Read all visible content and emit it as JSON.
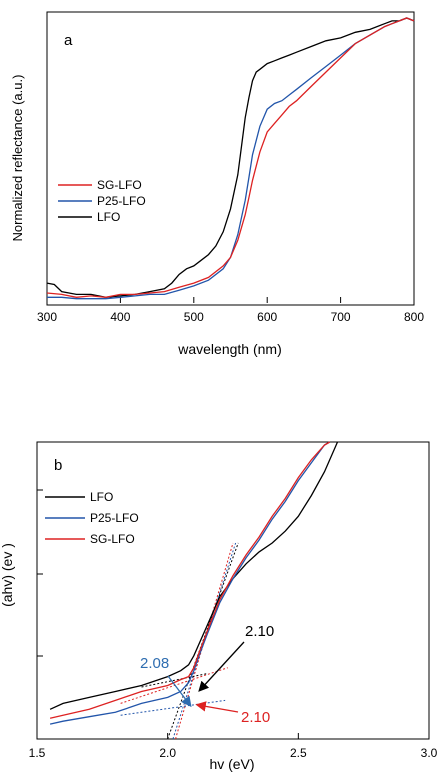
{
  "chart_data": [
    {
      "type": "line",
      "panel_label": "a",
      "xlabel": "wavelength (nm)",
      "ylabel": "Normalized reflectance (a.u.)",
      "xlim": [
        300,
        800
      ],
      "ylim": [
        0,
        1
      ],
      "x_ticks": [
        300,
        400,
        500,
        600,
        700,
        800
      ],
      "y_ticks_labeled": false,
      "grid": false,
      "legend": "center-left",
      "legend_order": [
        "SG-LFO",
        "P25-LFO",
        "LFO"
      ],
      "series": [
        {
          "name": "LFO",
          "color": "#000000",
          "x": [
            300,
            310,
            320,
            340,
            360,
            380,
            400,
            420,
            440,
            460,
            470,
            480,
            490,
            500,
            510,
            520,
            530,
            540,
            550,
            560,
            565,
            570,
            575,
            580,
            585,
            590,
            600,
            610,
            620,
            630,
            640,
            660,
            680,
            700,
            720,
            740,
            760,
            770,
            780,
            790,
            800
          ],
          "y": [
            0.07,
            0.065,
            0.04,
            0.03,
            0.03,
            0.02,
            0.025,
            0.03,
            0.04,
            0.05,
            0.07,
            0.1,
            0.12,
            0.13,
            0.15,
            0.17,
            0.2,
            0.25,
            0.33,
            0.45,
            0.55,
            0.65,
            0.72,
            0.78,
            0.81,
            0.82,
            0.84,
            0.85,
            0.86,
            0.87,
            0.88,
            0.9,
            0.92,
            0.93,
            0.95,
            0.96,
            0.98,
            0.99,
            0.99,
            1.0,
            0.99
          ]
        },
        {
          "name": "P25-LFO",
          "color": "#2255aa",
          "x": [
            300,
            320,
            340,
            360,
            380,
            400,
            420,
            440,
            460,
            480,
            500,
            520,
            540,
            550,
            560,
            570,
            575,
            580,
            590,
            600,
            610,
            620,
            630,
            640,
            660,
            680,
            700,
            720,
            740,
            760,
            770,
            780,
            790,
            800
          ],
          "y": [
            0.02,
            0.02,
            0.015,
            0.015,
            0.015,
            0.02,
            0.025,
            0.03,
            0.03,
            0.045,
            0.06,
            0.08,
            0.12,
            0.16,
            0.24,
            0.36,
            0.44,
            0.52,
            0.62,
            0.68,
            0.7,
            0.71,
            0.73,
            0.75,
            0.79,
            0.83,
            0.87,
            0.91,
            0.94,
            0.97,
            0.98,
            0.99,
            1.0,
            0.99
          ]
        },
        {
          "name": "SG-LFO",
          "color": "#dd2222",
          "x": [
            300,
            320,
            340,
            360,
            380,
            400,
            420,
            440,
            460,
            480,
            500,
            520,
            540,
            550,
            560,
            570,
            575,
            580,
            590,
            600,
            610,
            620,
            630,
            640,
            660,
            680,
            700,
            720,
            740,
            760,
            770,
            780,
            790,
            800
          ],
          "y": [
            0.035,
            0.03,
            0.02,
            0.025,
            0.02,
            0.03,
            0.03,
            0.035,
            0.04,
            0.055,
            0.07,
            0.09,
            0.13,
            0.16,
            0.22,
            0.31,
            0.37,
            0.43,
            0.53,
            0.6,
            0.63,
            0.66,
            0.69,
            0.71,
            0.76,
            0.81,
            0.86,
            0.91,
            0.94,
            0.97,
            0.98,
            0.99,
            1.0,
            0.99
          ]
        }
      ]
    },
    {
      "type": "line",
      "panel_label": "b",
      "xlabel": "hv (eV)",
      "ylabel": "(αhν)² (eV)²",
      "ylabel_visible": "(ahv) (ev )",
      "xlim": [
        1.5,
        3.0
      ],
      "ylim": [
        0,
        1
      ],
      "x_ticks": [
        1.5,
        2.0,
        2.5,
        3.0
      ],
      "y_ticks_labeled": false,
      "grid": false,
      "legend": "top-left",
      "legend_order": [
        "LFO",
        "P25-LFO",
        "SG-LFO"
      ],
      "series": [
        {
          "name": "LFO",
          "color": "#000000",
          "x": [
            1.55,
            1.6,
            1.7,
            1.8,
            1.9,
            2.0,
            2.05,
            2.08,
            2.1,
            2.12,
            2.15,
            2.2,
            2.25,
            2.3,
            2.35,
            2.4,
            2.45,
            2.5,
            2.55,
            2.6,
            2.65
          ],
          "y": [
            0.1,
            0.12,
            0.14,
            0.16,
            0.18,
            0.21,
            0.23,
            0.25,
            0.28,
            0.32,
            0.38,
            0.48,
            0.54,
            0.59,
            0.63,
            0.66,
            0.7,
            0.75,
            0.82,
            0.9,
            1.0
          ]
        },
        {
          "name": "P25-LFO",
          "color": "#2255aa",
          "x": [
            1.55,
            1.6,
            1.7,
            1.8,
            1.9,
            2.0,
            2.05,
            2.08,
            2.1,
            2.12,
            2.15,
            2.2,
            2.25,
            2.3,
            2.35,
            2.4,
            2.45,
            2.5,
            2.55,
            2.6,
            2.62
          ],
          "y": [
            0.05,
            0.06,
            0.075,
            0.09,
            0.12,
            0.14,
            0.16,
            0.19,
            0.23,
            0.28,
            0.35,
            0.46,
            0.54,
            0.61,
            0.67,
            0.74,
            0.8,
            0.87,
            0.93,
            0.99,
            1.0
          ]
        },
        {
          "name": "SG-LFO",
          "color": "#dd2222",
          "x": [
            1.55,
            1.6,
            1.7,
            1.8,
            1.9,
            2.0,
            2.05,
            2.08,
            2.1,
            2.12,
            2.15,
            2.2,
            2.25,
            2.3,
            2.35,
            2.4,
            2.45,
            2.5,
            2.55,
            2.6,
            2.62
          ],
          "y": [
            0.07,
            0.08,
            0.1,
            0.13,
            0.16,
            0.18,
            0.2,
            0.21,
            0.24,
            0.29,
            0.36,
            0.47,
            0.55,
            0.62,
            0.68,
            0.75,
            0.81,
            0.88,
            0.94,
            0.99,
            1.0
          ]
        }
      ],
      "annotations": [
        {
          "text": "2.08",
          "color": "#2e6db0",
          "x": 2.08,
          "series": "P25-LFO"
        },
        {
          "text": "2.10",
          "color": "#000000",
          "x": 2.1,
          "series": "LFO"
        },
        {
          "text": "2.10",
          "color": "#dd2222",
          "x": 2.1,
          "series": "SG-LFO"
        }
      ]
    }
  ]
}
